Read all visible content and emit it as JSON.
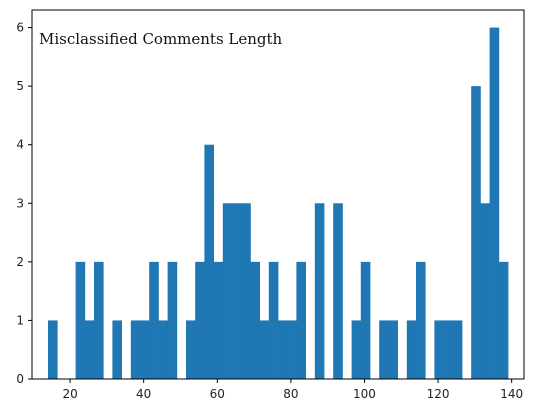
{
  "chart_data": {
    "type": "bar",
    "title": "Misclassified Comments Length",
    "xlabel": "",
    "ylabel": "",
    "xlim": [
      9.65,
      143.35
    ],
    "ylim": [
      0,
      6.3
    ],
    "x_ticks": [
      20,
      40,
      60,
      80,
      100,
      120,
      140
    ],
    "y_ticks": [
      0,
      1,
      2,
      3,
      4,
      5,
      6
    ],
    "bin_width": 2.5,
    "bins_start": 14,
    "counts": [
      1,
      0,
      0,
      2,
      1,
      2,
      0,
      1,
      0,
      1,
      1,
      2,
      1,
      2,
      0,
      1,
      2,
      4,
      2,
      3,
      3,
      3,
      2,
      1,
      2,
      1,
      1,
      2,
      0,
      3,
      0,
      3,
      0,
      1,
      2,
      0,
      1,
      1,
      0,
      1,
      2,
      0,
      1,
      1,
      1,
      0,
      5,
      3,
      6,
      2
    ],
    "bar_color": "#1f77b4",
    "grid": false,
    "legend": "none"
  }
}
